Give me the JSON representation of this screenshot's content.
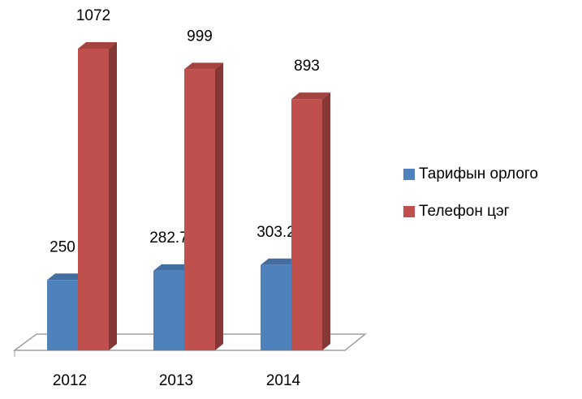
{
  "chart_data": {
    "type": "bar3d",
    "categories": [
      "2012",
      "2013",
      "2014"
    ],
    "series": [
      {
        "name": "Тарифын орлого",
        "color": "#4f81bd",
        "values": [
          250,
          282.7,
          303.2
        ]
      },
      {
        "name": "Телефон цэг",
        "color": "#c0504d",
        "values": [
          1072,
          999,
          893
        ]
      }
    ],
    "legend": "right"
  }
}
